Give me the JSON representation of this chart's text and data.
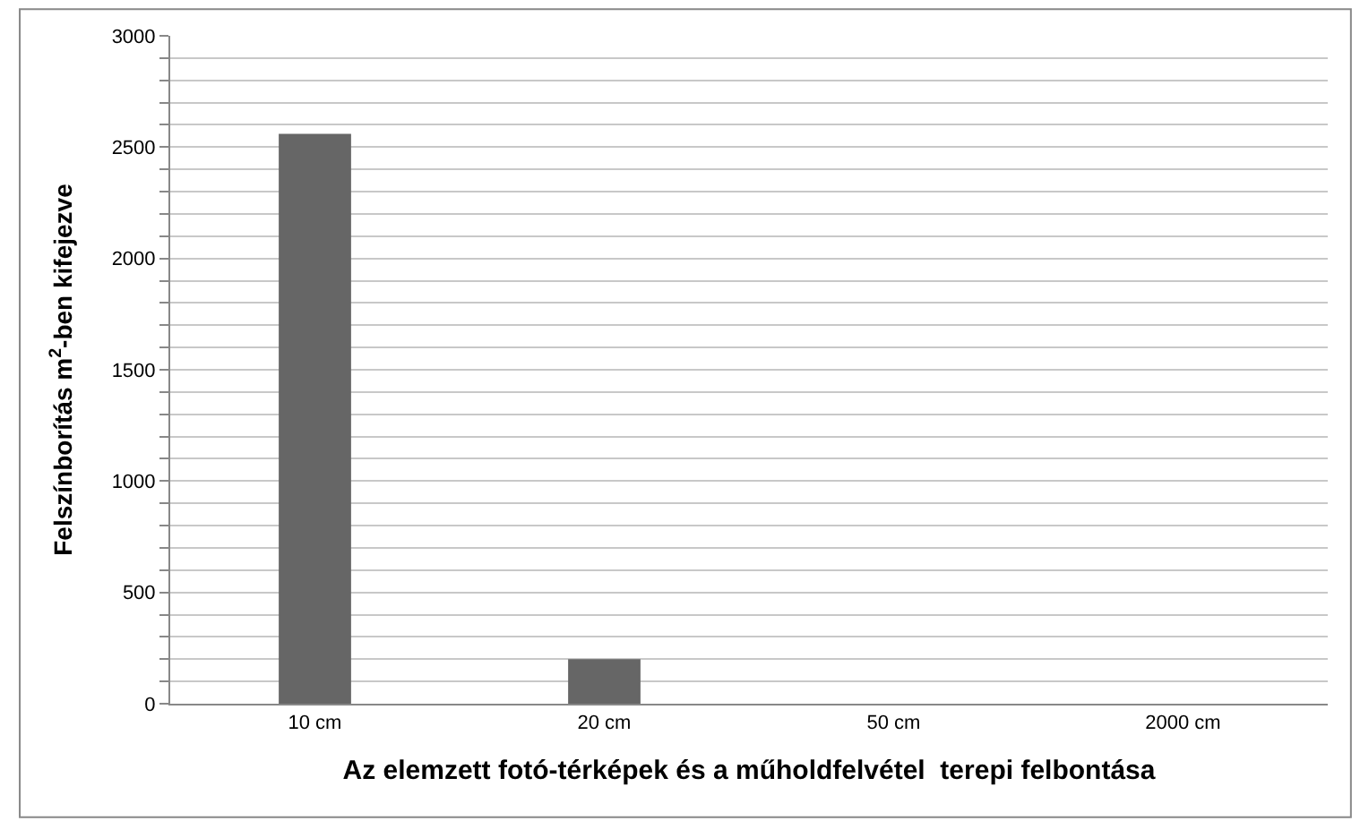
{
  "chart_data": {
    "type": "bar",
    "xlabel": "Az elemzett fotó-térképek és a műholdfelvétel  terepi felbontása",
    "ylabel": "Felszínborítás m$^{2}$-ben kifejezve",
    "categories": [
      "10 cm",
      "20 cm",
      "50 cm",
      "2000 cm"
    ],
    "values": [
      2560,
      200,
      0,
      0
    ],
    "color": "#666666",
    "ylim": [
      0,
      3000
    ],
    "yticks": [
      0,
      {
        "value": 100,
        "label": null
      },
      {
        "value": 200,
        "label": null
      },
      {
        "value": 300,
        "label": null
      },
      {
        "value": 400,
        "label": null
      },
      500,
      {
        "value": 600,
        "label": null
      },
      {
        "value": 700,
        "label": null
      },
      {
        "value": 800,
        "label": null
      },
      {
        "value": 900,
        "label": null
      },
      1000,
      {
        "value": 1100,
        "label": null
      },
      {
        "value": 1200,
        "label": null
      },
      {
        "value": 1300,
        "label": null
      },
      {
        "value": 1400,
        "label": null
      },
      1500,
      {
        "value": 1600,
        "label": null
      },
      {
        "value": 1700,
        "label": null
      },
      {
        "value": 1800,
        "label": null
      },
      {
        "value": 1900,
        "label": null
      },
      2000,
      {
        "value": 2100,
        "label": null
      },
      {
        "value": 2200,
        "label": null
      },
      {
        "value": 2300,
        "label": null
      },
      {
        "value": 2400,
        "label": null
      },
      2500,
      {
        "value": 2600,
        "label": null
      },
      {
        "value": 2700,
        "label": null
      },
      {
        "value": 2800,
        "label": null
      },
      {
        "value": 2900,
        "label": null
      },
      3000
    ],
    "grid": "y"
  }
}
